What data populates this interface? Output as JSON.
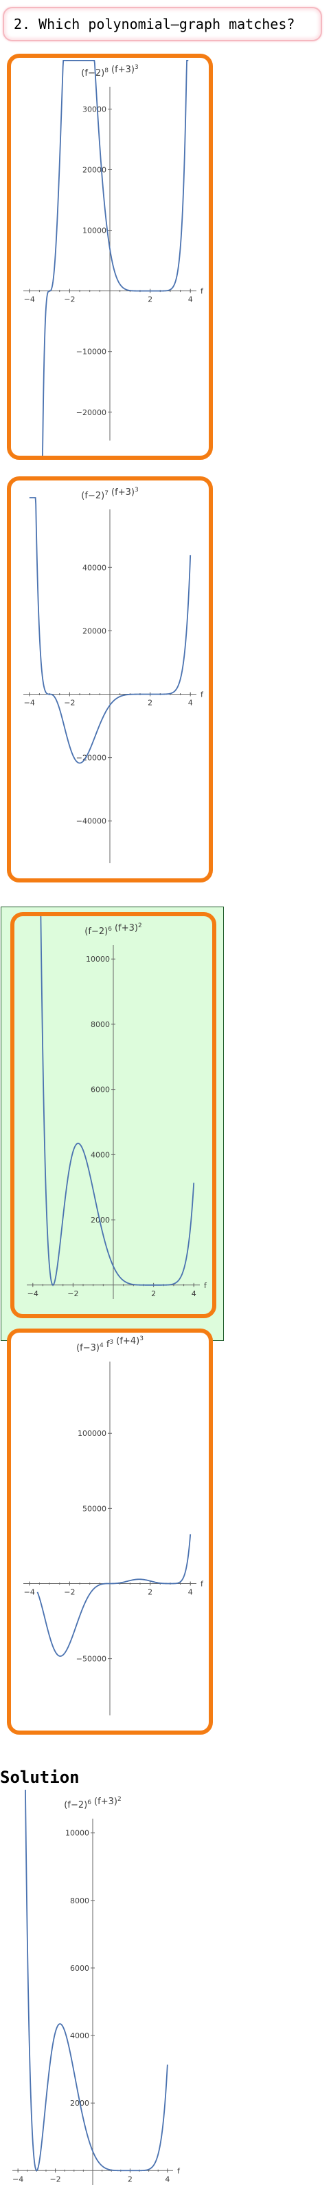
{
  "question": {
    "text": "2. Which polynomial–graph matches?"
  },
  "solution_label": "Solution",
  "chart_data": [
    {
      "type": "line",
      "title_base": "(f−2)",
      "title_exp1": "8",
      "title_mid": " (f+3)",
      "title_exp2": "3",
      "xlabel": "f",
      "xlim": [
        -4.3,
        4.3
      ],
      "ylim": [
        -24000,
        33000
      ],
      "xticks": [
        -4,
        -2,
        2,
        4
      ],
      "xtick_labels": [
        "−4",
        "−2",
        "2",
        "4"
      ],
      "yticks": [
        -20000,
        -10000,
        10000,
        20000,
        30000
      ],
      "ytick_labels": [
        "−20000",
        "−10000",
        "10000",
        "20000",
        "30000"
      ],
      "fn": {
        "shift": 2,
        "p1": 8,
        "root2": -3,
        "p2": 3
      },
      "x_range": [
        -3.7,
        3.9
      ],
      "selected": false
    },
    {
      "type": "line",
      "title_base": "(f−2)",
      "title_exp1": "7",
      "title_mid": " (f+3)",
      "title_exp2": "3",
      "xlabel": "f",
      "xlim": [
        -4.3,
        4.3
      ],
      "ylim": [
        -52000,
        57000
      ],
      "xticks": [
        -4,
        -2,
        2,
        4
      ],
      "xtick_labels": [
        "−4",
        "−2",
        "2",
        "4"
      ],
      "yticks": [
        -40000,
        -20000,
        20000,
        40000
      ],
      "ytick_labels": [
        "−40000",
        "−20000",
        "20000",
        "40000"
      ],
      "fn": {
        "shift": 2,
        "p1": 7,
        "root2": -3,
        "p2": 3
      },
      "x_range": [
        -4.0,
        4.0
      ],
      "selected": false
    },
    {
      "type": "line",
      "title_base": "(f−2)",
      "title_exp1": "6",
      "title_mid": " (f+3)",
      "title_exp2": "2",
      "xlabel": "f",
      "xlim": [
        -4.3,
        4.3
      ],
      "ylim": [
        -300,
        10300
      ],
      "xticks": [
        -4,
        -2,
        2,
        4
      ],
      "xtick_labels": [
        "−4",
        "−2",
        "2",
        "4"
      ],
      "yticks": [
        2000,
        4000,
        6000,
        8000,
        10000
      ],
      "ytick_labels": [
        "2000",
        "4000",
        "6000",
        "8000",
        "10000"
      ],
      "fn": {
        "shift": 2,
        "p1": 6,
        "root2": -3,
        "p2": 2
      },
      "x_range": [
        -3.7,
        4.0
      ],
      "selected": true
    },
    {
      "type": "line",
      "title_base": "(f−3)",
      "title_exp1": "4",
      "title_mid": " f",
      "title_exp2": "3",
      "title_tail": " (f+4)",
      "title_exp3": "3",
      "xlabel": "f",
      "xlim": [
        -4.3,
        4.3
      ],
      "ylim": [
        -85000,
        145000
      ],
      "xticks": [
        -4,
        -2,
        2,
        4
      ],
      "xtick_labels": [
        "−4",
        "−2",
        "2",
        "4"
      ],
      "yticks": [
        -50000,
        50000,
        100000
      ],
      "ytick_labels": [
        "−50000",
        "50000",
        "100000"
      ],
      "fn": {
        "kind": "d"
      },
      "x_range": [
        -3.6,
        4.0
      ],
      "selected": false
    },
    {
      "type": "line",
      "title_base": "(f−2)",
      "title_exp1": "6",
      "title_mid": " (f+3)",
      "title_exp2": "2",
      "xlabel": "f",
      "xlim": [
        -4.3,
        4.3
      ],
      "ylim": [
        -300,
        10300
      ],
      "xticks": [
        -4,
        -2,
        2,
        4
      ],
      "xtick_labels": [
        "−4",
        "−2",
        "2",
        "4"
      ],
      "yticks": [
        2000,
        4000,
        6000,
        8000,
        10000
      ],
      "ytick_labels": [
        "2000",
        "4000",
        "6000",
        "8000",
        "10000"
      ],
      "fn": {
        "shift": 2,
        "p1": 6,
        "root2": -3,
        "p2": 2
      },
      "x_range": [
        -3.7,
        4.0
      ],
      "selected": false,
      "role": "solution"
    }
  ],
  "colors": {
    "curve": "#4a72b0",
    "card_border": "#f47c13",
    "selected_bg": "#ddfcdc",
    "axis": "#666666"
  }
}
